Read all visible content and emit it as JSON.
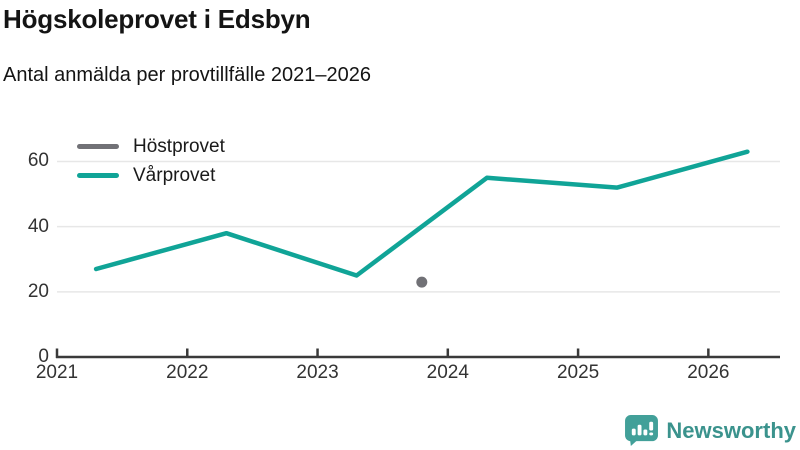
{
  "chart_data": {
    "type": "line",
    "title": "Högskoleprovet i Edsbyn",
    "subtitle": "Antal anmälda per provtillfälle 2021–2026",
    "x_ticks": [
      2021,
      2022,
      2023,
      2024,
      2025,
      2026
    ],
    "y_ticks": [
      0,
      20,
      40,
      60
    ],
    "x_range": [
      2021,
      2026.55
    ],
    "y_range": [
      0,
      71.2
    ],
    "grid": "horizontal",
    "legend_position": "top-left",
    "axis_color": "#3a3a3a",
    "gridline_color": "#e7e7e7",
    "tick_label_color": "#333333",
    "series": [
      {
        "name": "Höstprovet",
        "color": "#717176",
        "style": "point",
        "points": [
          {
            "x": 2023.8,
            "y": 23
          }
        ]
      },
      {
        "name": "Vårprovet",
        "color": "#10a497",
        "style": "line",
        "points": [
          {
            "x": 2021.3,
            "y": 27
          },
          {
            "x": 2022.3,
            "y": 38
          },
          {
            "x": 2023.3,
            "y": 25
          },
          {
            "x": 2024.3,
            "y": 55
          },
          {
            "x": 2025.3,
            "y": 52
          },
          {
            "x": 2026.3,
            "y": 63
          }
        ]
      }
    ]
  },
  "branding": {
    "logo_text": "Newsworthy",
    "logo_text_color": "#3b938d",
    "logo_bubble_color": "#42a099",
    "logo_bar_color": "#ffffff"
  }
}
